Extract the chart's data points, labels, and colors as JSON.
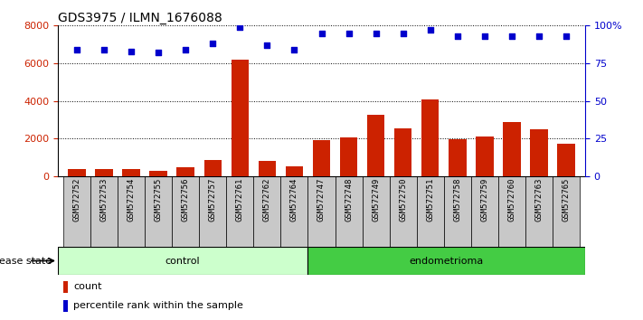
{
  "title": "GDS3975 / ILMN_1676088",
  "samples": [
    "GSM572752",
    "GSM572753",
    "GSM572754",
    "GSM572755",
    "GSM572756",
    "GSM572757",
    "GSM572761",
    "GSM572762",
    "GSM572764",
    "GSM572747",
    "GSM572748",
    "GSM572749",
    "GSM572750",
    "GSM572751",
    "GSM572758",
    "GSM572759",
    "GSM572760",
    "GSM572763",
    "GSM572765"
  ],
  "counts": [
    350,
    380,
    370,
    270,
    480,
    850,
    6200,
    800,
    500,
    1900,
    2050,
    3250,
    2550,
    4050,
    1950,
    2100,
    2850,
    2500,
    1700
  ],
  "percentiles": [
    84,
    84,
    83,
    82,
    84,
    88,
    99,
    87,
    84,
    95,
    95,
    95,
    95,
    97,
    93,
    93,
    93,
    93,
    93
  ],
  "control_count": 9,
  "endometrioma_count": 10,
  "bar_color": "#cc2200",
  "dot_color": "#0000cc",
  "control_bg": "#ccffcc",
  "endometrioma_bg": "#44cc44",
  "xtick_bg": "#c8c8c8",
  "ylim_left": [
    0,
    8000
  ],
  "ylim_right": [
    0,
    100
  ],
  "yticks_left": [
    0,
    2000,
    4000,
    6000,
    8000
  ],
  "yticks_right": [
    0,
    25,
    50,
    75,
    100
  ],
  "ytick_labels_right": [
    "0",
    "25",
    "50",
    "75",
    "100%"
  ],
  "legend_count_label": "count",
  "legend_pct_label": "percentile rank within the sample",
  "disease_state_label": "disease state",
  "control_label": "control",
  "endometrioma_label": "endometrioma"
}
